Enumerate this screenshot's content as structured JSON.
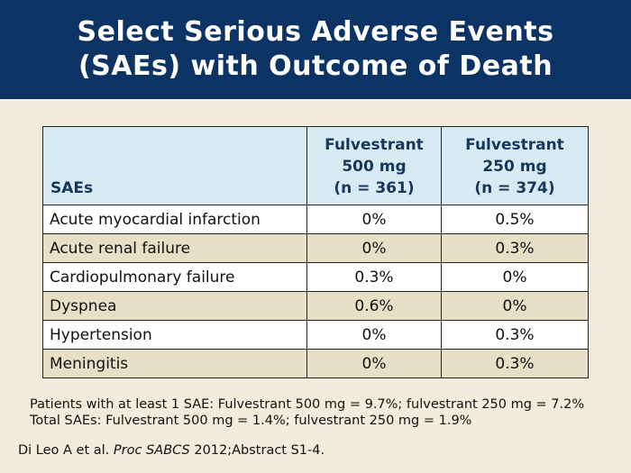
{
  "title": {
    "line1": "Select Serious Adverse Events",
    "line2": "(SAEs) with Outcome of Death"
  },
  "table": {
    "headers": {
      "sae": "SAEs",
      "col1": [
        "Fulvestrant",
        "500 mg",
        "(n = 361)"
      ],
      "col2": [
        "Fulvestrant",
        "250 mg",
        "(n = 374)"
      ]
    },
    "rows": [
      {
        "sae": "Acute myocardial infarction",
        "v500": "0%",
        "v250": "0.5%"
      },
      {
        "sae": "Acute renal failure",
        "v500": "0%",
        "v250": "0.3%"
      },
      {
        "sae": "Cardiopulmonary failure",
        "v500": "0.3%",
        "v250": "0%"
      },
      {
        "sae": "Dyspnea",
        "v500": "0.6%",
        "v250": "0%"
      },
      {
        "sae": "Hypertension",
        "v500": "0%",
        "v250": "0.3%"
      },
      {
        "sae": "Meningitis",
        "v500": "0%",
        "v250": "0.3%"
      }
    ]
  },
  "notes": [
    "Patients with at least 1 SAE: Fulvestrant 500 mg = 9.7%; fulvestrant 250 mg = 7.2%",
    "Total SAEs: Fulvestrant 500 mg = 1.4%; fulvestrant 250 mg = 1.9%"
  ],
  "citation": {
    "authors": "Di Leo A et al. ",
    "journal": "Proc SABCS",
    "rest": " 2012;Abstract S1-4."
  },
  "colors": {
    "header_bg": "#0b3363",
    "page_bg": "#f1ecdb",
    "table_header_bg": "#d8ebf3",
    "row_alt_bg": "#e6e0c7"
  }
}
